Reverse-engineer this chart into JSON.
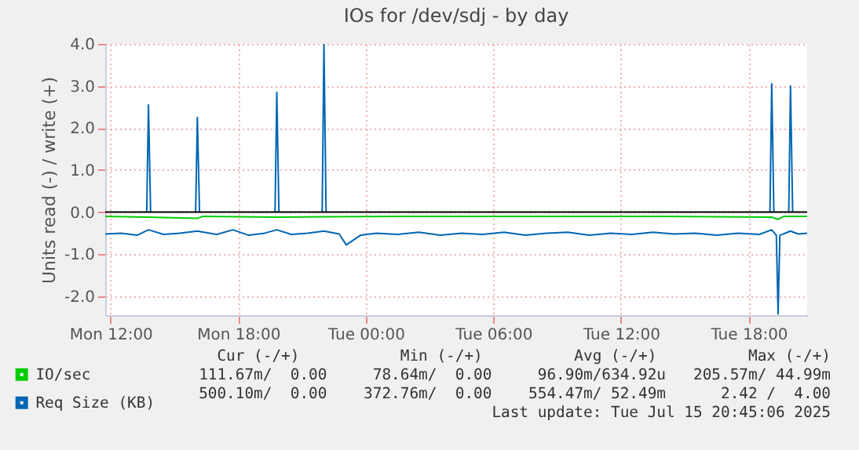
{
  "chart_data": {
    "type": "line",
    "title": "IOs for /dev/sdj - by day",
    "ylabel": "Units read (-) / write (+)",
    "xlim": [
      "2025-07-14T11:45",
      "2025-07-15T20:45"
    ],
    "xticks": [
      {
        "value": "2025-07-14T12:00",
        "label": "Mon 12:00"
      },
      {
        "value": "2025-07-14T18:00",
        "label": "Mon 18:00"
      },
      {
        "value": "2025-07-15T00:00",
        "label": "Tue 00:00"
      },
      {
        "value": "2025-07-15T06:00",
        "label": "Tue 06:00"
      },
      {
        "value": "2025-07-15T12:00",
        "label": "Tue 12:00"
      },
      {
        "value": "2025-07-15T18:00",
        "label": "Tue 18:00"
      }
    ],
    "ylim": [
      -2.45,
      4.0
    ],
    "yticks": [
      {
        "value": -2,
        "label": "-2.0"
      },
      {
        "value": -1,
        "label": "-1.0"
      },
      {
        "value": 0,
        "label": "0.0"
      },
      {
        "value": 1,
        "label": "1.0"
      },
      {
        "value": 2,
        "label": "2.0"
      },
      {
        "value": 3,
        "label": "3.0"
      },
      {
        "value": 4,
        "label": "4.0"
      }
    ],
    "grid": true,
    "legend": "bottom left",
    "ref_lines": [
      {
        "axis": "y",
        "value": 0,
        "color": "#000000"
      }
    ],
    "series": [
      {
        "name": "IO/sec",
        "color": "#00cc00",
        "x": [
          "2025-07-14T11:45",
          "2025-07-14T13:47",
          "2025-07-14T16:05",
          "2025-07-14T16:20",
          "2025-07-14T19:49",
          "2025-07-14T22:02",
          "2025-07-15T02:00",
          "2025-07-15T08:00",
          "2025-07-15T14:00",
          "2025-07-15T19:05",
          "2025-07-15T19:23",
          "2025-07-15T19:40",
          "2025-07-15T20:45"
        ],
        "values": [
          -0.1,
          -0.12,
          -0.15,
          -0.1,
          -0.12,
          -0.11,
          -0.1,
          -0.1,
          -0.1,
          -0.12,
          -0.17,
          -0.1,
          -0.1
        ]
      },
      {
        "name": "Req Size (KB)",
        "color": "#0066b3",
        "x": [
          "2025-07-14T11:45",
          "2025-07-14T12:30",
          "2025-07-14T13:15",
          "2025-07-14T13:47",
          "2025-07-14T14:30",
          "2025-07-14T15:15",
          "2025-07-14T16:05",
          "2025-07-14T17:00",
          "2025-07-14T17:45",
          "2025-07-14T18:30",
          "2025-07-14T19:15",
          "2025-07-14T19:49",
          "2025-07-14T20:30",
          "2025-07-14T21:15",
          "2025-07-14T22:02",
          "2025-07-14T22:45",
          "2025-07-14T23:05",
          "2025-07-14T23:45",
          "2025-07-15T00:30",
          "2025-07-15T01:30",
          "2025-07-15T02:30",
          "2025-07-15T03:30",
          "2025-07-15T04:30",
          "2025-07-15T05:30",
          "2025-07-15T06:30",
          "2025-07-15T07:30",
          "2025-07-15T08:30",
          "2025-07-15T09:30",
          "2025-07-15T10:30",
          "2025-07-15T11:30",
          "2025-07-15T12:30",
          "2025-07-15T13:30",
          "2025-07-15T14:30",
          "2025-07-15T15:30",
          "2025-07-15T16:30",
          "2025-07-15T17:30",
          "2025-07-15T18:30",
          "2025-07-15T19:05",
          "2025-07-15T19:18",
          "2025-07-15T19:23",
          "2025-07-15T19:28",
          "2025-07-15T19:58",
          "2025-07-15T20:20",
          "2025-07-15T20:45"
        ],
        "values": [
          -0.52,
          -0.5,
          -0.55,
          -0.42,
          -0.53,
          -0.5,
          -0.45,
          -0.53,
          -0.42,
          -0.55,
          -0.5,
          -0.42,
          -0.53,
          -0.5,
          -0.45,
          -0.52,
          -0.78,
          -0.55,
          -0.5,
          -0.53,
          -0.48,
          -0.55,
          -0.5,
          -0.53,
          -0.48,
          -0.55,
          -0.5,
          -0.48,
          -0.55,
          -0.5,
          -0.53,
          -0.48,
          -0.52,
          -0.5,
          -0.55,
          -0.5,
          -0.53,
          -0.42,
          -0.55,
          -2.42,
          -0.55,
          -0.45,
          -0.52,
          -0.5
        ]
      },
      {
        "color": "#0066b3",
        "x": [
          "2025-07-14T13:42",
          "2025-07-14T13:47",
          "2025-07-14T13:53",
          "2025-07-14T15:00",
          "2025-07-14T16:00",
          "2025-07-14T16:05",
          "2025-07-14T16:11",
          "2025-07-14T18:00",
          "2025-07-14T19:44",
          "2025-07-14T19:49",
          "2025-07-14T19:55",
          "2025-07-14T21:00",
          "2025-07-14T21:57",
          "2025-07-14T22:02",
          "2025-07-14T22:08",
          "2025-07-15T12:00",
          "2025-07-15T19:00",
          "2025-07-15T19:05",
          "2025-07-15T19:11",
          "2025-07-15T19:30",
          "2025-07-15T19:53",
          "2025-07-15T19:58",
          "2025-07-15T20:04"
        ],
        "values": [
          0,
          2.55,
          0,
          null,
          0,
          2.25,
          0,
          null,
          0,
          2.85,
          0,
          null,
          0,
          4.0,
          0,
          null,
          0,
          3.05,
          0,
          null,
          0,
          3.0,
          0
        ]
      }
    ],
    "annotations": [
      "Cur (-/+)           Min (-/+)          Avg (-/+)          Max (-/+)",
      "111.67m/  0.00     78.64m/  0.00     96.90m/634.92u   205.57m/ 44.99m",
      "500.10m/  0.00    372.76m/  0.00    554.47m/ 52.49m      2.42 /  4.00",
      "Last update: Tue Jul 15 20:45:06 2025"
    ]
  }
}
